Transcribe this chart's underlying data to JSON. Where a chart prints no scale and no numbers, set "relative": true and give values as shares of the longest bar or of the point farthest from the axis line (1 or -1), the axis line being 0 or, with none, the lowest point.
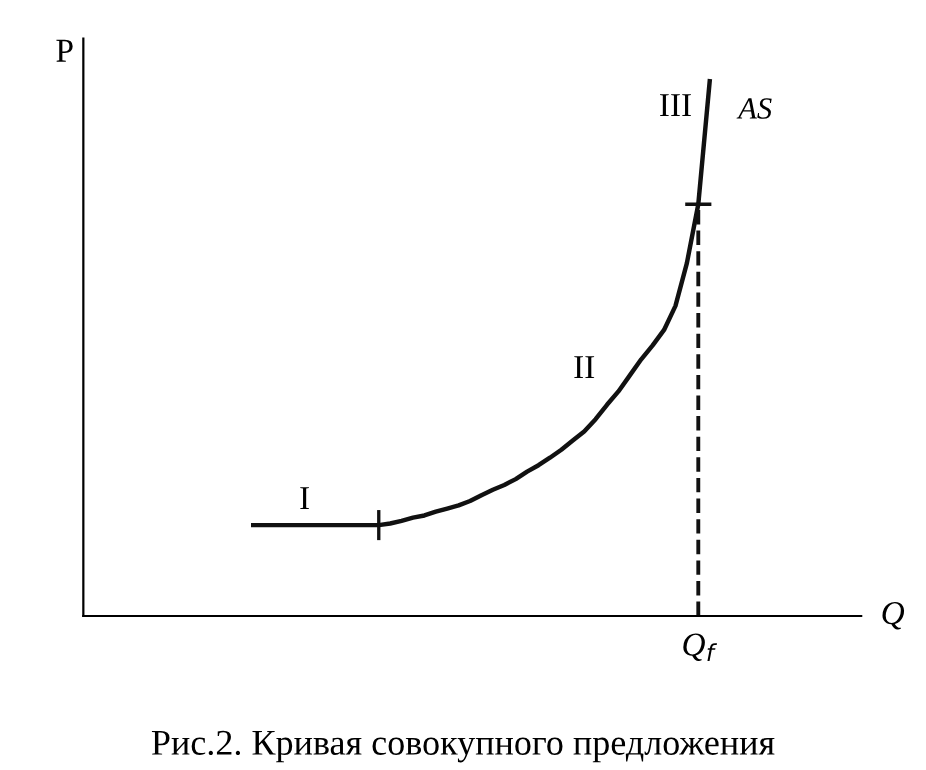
{
  "chart_data": {
    "type": "line",
    "relative": true,
    "legend": false,
    "categories": [
      null,
      null,
      null,
      null,
      null,
      null,
      null,
      null,
      null,
      null,
      null,
      null,
      null,
      null,
      null,
      null,
      null,
      null,
      null,
      null,
      null,
      null,
      null,
      null,
      null,
      null,
      null,
      null,
      null,
      null,
      null,
      null,
      null,
      null,
      null,
      null,
      null,
      null,
      null,
      null,
      null
    ],
    "series": [
      {
        "name": "AS",
        "color": "#111111",
        "line_style": "solid",
        "marker": "none",
        "values": [
          0.17,
          0.17,
          0.17,
          0.17,
          0.17,
          0.17,
          0.17,
          0.17,
          0.17,
          0.17,
          0.17,
          0.17,
          0.173,
          0.178,
          0.184,
          0.188,
          0.195,
          0.201,
          0.207,
          0.215,
          0.226,
          0.236,
          0.245,
          0.256,
          0.27,
          0.282,
          0.296,
          0.311,
          0.328,
          0.345,
          0.368,
          0.395,
          0.42,
          0.45,
          0.48,
          0.506,
          0.535,
          0.58,
          0.66,
          0.77,
          1.0
        ]
      }
    ],
    "annotations": [
      "P",
      "Q",
      "I",
      "II",
      "III",
      "Q$_{f}$",
      "Рис.2. Кривая совокупного предложения"
    ]
  }
}
